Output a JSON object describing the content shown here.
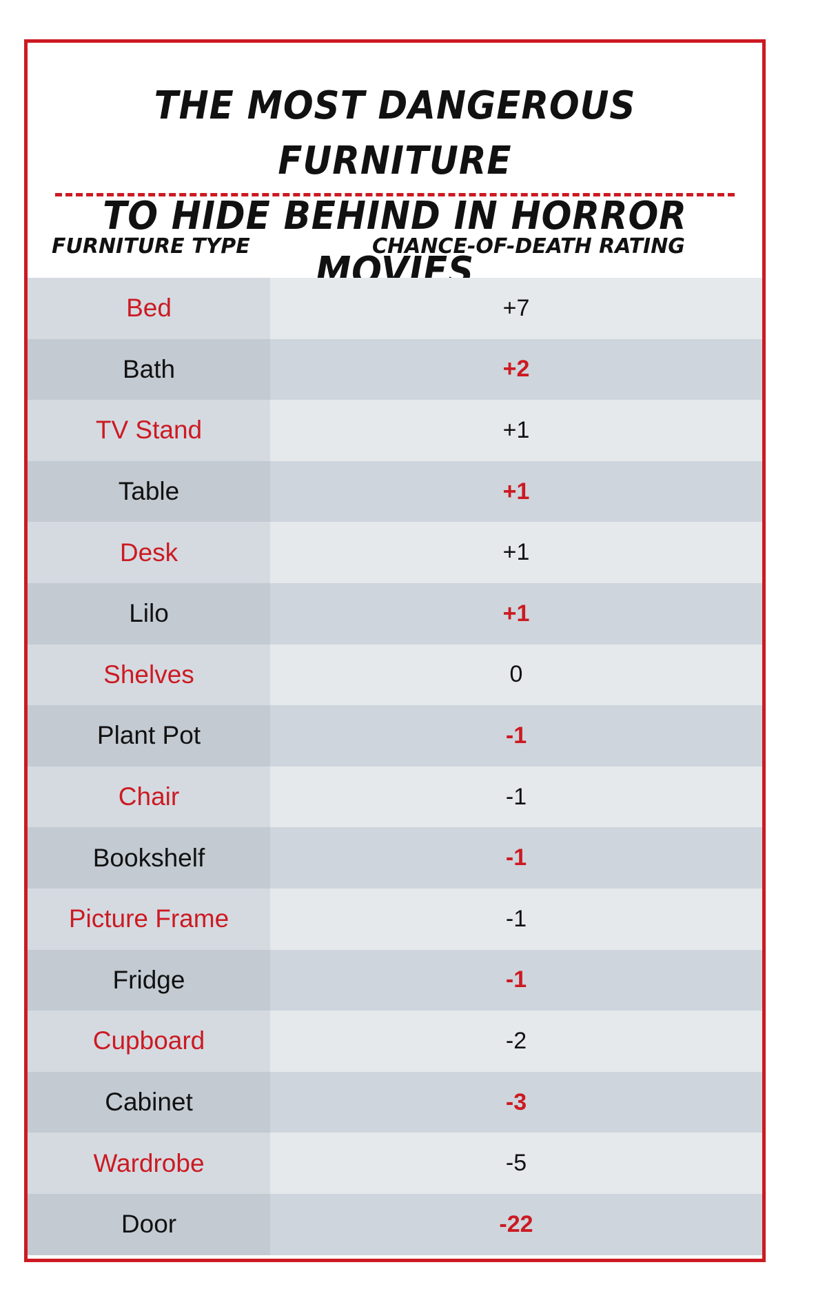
{
  "title": {
    "line1": "The Most Dangerous Furniture",
    "line2": "To Hide Behind In Horror Movies"
  },
  "headers": {
    "col1": "Furniture Type",
    "col2": "Chance-of-Death Rating"
  },
  "colors": {
    "accent": "#cc1a22",
    "text": "#111111"
  },
  "rows": [
    {
      "type": "Bed",
      "rating": "+7"
    },
    {
      "type": "Bath",
      "rating": "+2"
    },
    {
      "type": "TV Stand",
      "rating": "+1"
    },
    {
      "type": "Table",
      "rating": "+1"
    },
    {
      "type": "Desk",
      "rating": "+1"
    },
    {
      "type": "Lilo",
      "rating": "+1"
    },
    {
      "type": "Shelves",
      "rating": "0"
    },
    {
      "type": "Plant Pot",
      "rating": "-1"
    },
    {
      "type": "Chair",
      "rating": "-1"
    },
    {
      "type": "Bookshelf",
      "rating": "-1"
    },
    {
      "type": "Picture Frame",
      "rating": "-1"
    },
    {
      "type": "Fridge",
      "rating": "-1"
    },
    {
      "type": "Cupboard",
      "rating": "-2"
    },
    {
      "type": "Cabinet",
      "rating": "-3"
    },
    {
      "type": "Wardrobe",
      "rating": "-5"
    },
    {
      "type": "Door",
      "rating": "-22"
    }
  ]
}
